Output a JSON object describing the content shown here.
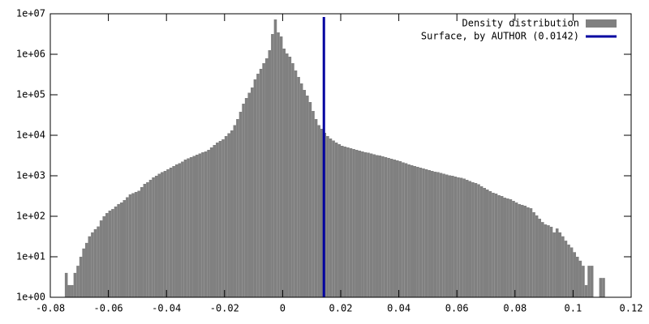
{
  "chart_data": {
    "type": "histogram",
    "log_y": true,
    "series": [
      {
        "name": "Density distribution",
        "color": "#808080",
        "values": [
          4,
          2,
          2,
          4,
          6,
          10,
          16,
          22,
          32,
          40,
          48,
          56,
          79,
          100,
          120,
          138,
          151,
          174,
          200,
          219,
          251,
          295,
          347,
          372,
          398,
          427,
          525,
          631,
          692,
          794,
          912,
          1000,
          1122,
          1230,
          1318,
          1445,
          1585,
          1738,
          1905,
          2042,
          2239,
          2512,
          2692,
          2884,
          3090,
          3311,
          3548,
          3802,
          3981,
          4365,
          5012,
          5754,
          6607,
          7244,
          7943,
          9550,
          11220,
          13183,
          17783,
          25119,
          38019,
          60256,
          83176,
          112202,
          151356,
          239883,
          331131,
          436516,
          602560,
          794328,
          1258925,
          3162278,
          7244360,
          3467369,
          2754229,
          1380384,
          1047129,
          870964,
          602560,
          398107,
          275423,
          190546,
          131826,
          95499,
          66069,
          39811,
          25119,
          17783,
          14454,
          11482,
          9550,
          8318,
          7413,
          6607,
          6026,
          5495,
          5248,
          5012,
          4786,
          4571,
          4365,
          4169,
          3981,
          3802,
          3715,
          3548,
          3388,
          3236,
          3162,
          3020,
          2884,
          2754,
          2630,
          2512,
          2399,
          2291,
          2138,
          2042,
          1905,
          1820,
          1738,
          1660,
          1585,
          1514,
          1445,
          1380,
          1318,
          1259,
          1230,
          1175,
          1122,
          1072,
          1023,
          1000,
          955,
          912,
          891,
          851,
          794,
          741,
          692,
          661,
          617,
          550,
          501,
          457,
          417,
          380,
          363,
          331,
          316,
          288,
          275,
          263,
          240,
          219,
          200,
          191,
          182,
          166,
          158,
          126,
          105,
          87,
          72,
          63,
          60,
          55,
          40,
          50,
          40,
          32,
          25,
          20,
          17,
          13,
          10,
          8,
          6,
          2,
          6,
          6,
          1,
          1,
          3,
          3
        ]
      }
    ],
    "bins": [
      -0.075,
      -0.074,
      -0.073,
      -0.072,
      -0.071,
      -0.07,
      -0.069,
      -0.068,
      -0.067,
      -0.066,
      -0.065,
      -0.064,
      -0.063,
      -0.062,
      -0.061,
      -0.06,
      -0.059,
      -0.058,
      -0.057,
      -0.056,
      -0.055,
      -0.054,
      -0.053,
      -0.052,
      -0.051,
      -0.05,
      -0.049,
      -0.048,
      -0.047,
      -0.046,
      -0.045,
      -0.044,
      -0.043,
      -0.042,
      -0.041,
      -0.04,
      -0.039,
      -0.038,
      -0.037,
      -0.036,
      -0.035,
      -0.034,
      -0.033,
      -0.032,
      -0.031,
      -0.03,
      -0.029,
      -0.028,
      -0.027,
      -0.026,
      -0.025,
      -0.024,
      -0.023,
      -0.022,
      -0.021,
      -0.02,
      -0.019,
      -0.018,
      -0.017,
      -0.016,
      -0.015,
      -0.014,
      -0.013,
      -0.012,
      -0.011,
      -0.01,
      -0.009,
      -0.008,
      -0.007,
      -0.006,
      -0.005,
      -0.004,
      -0.003,
      -0.002,
      -0.001,
      0,
      0.001,
      0.002,
      0.003,
      0.004,
      0.005,
      0.006,
      0.007,
      0.008,
      0.009,
      0.01,
      0.011,
      0.012,
      0.013,
      0.014,
      0.015,
      0.016,
      0.017,
      0.018,
      0.019,
      0.02,
      0.021,
      0.022,
      0.023,
      0.024,
      0.025,
      0.026,
      0.027,
      0.028,
      0.029,
      0.03,
      0.031,
      0.032,
      0.033,
      0.034,
      0.035,
      0.036,
      0.037,
      0.038,
      0.039,
      0.04,
      0.041,
      0.042,
      0.043,
      0.044,
      0.045,
      0.046,
      0.047,
      0.048,
      0.049,
      0.05,
      0.051,
      0.052,
      0.053,
      0.054,
      0.055,
      0.056,
      0.057,
      0.058,
      0.059,
      0.06,
      0.061,
      0.062,
      0.063,
      0.064,
      0.065,
      0.066,
      0.067,
      0.068,
      0.069,
      0.07,
      0.071,
      0.072,
      0.073,
      0.074,
      0.075,
      0.076,
      0.077,
      0.078,
      0.079,
      0.08,
      0.081,
      0.082,
      0.083,
      0.084,
      0.085,
      0.086,
      0.087,
      0.088,
      0.089,
      0.09,
      0.091,
      0.092,
      0.093,
      0.094,
      0.095,
      0.096,
      0.097,
      0.098,
      0.099,
      0.1,
      0.101,
      0.102,
      0.103,
      0.104,
      0.105,
      0.106,
      0.107,
      0.108,
      0.109,
      0.11,
      0.111
    ],
    "vline": {
      "name": "Surface, by AUTHOR (0.0142)",
      "x": 0.0142,
      "color": "#0000a0"
    },
    "xlim": [
      -0.08,
      0.12
    ],
    "xticks": [
      -0.08,
      -0.06,
      -0.04,
      -0.02,
      0,
      0.02,
      0.04,
      0.06,
      0.08,
      0.1,
      0.12
    ],
    "ylim": [
      1,
      10000000
    ],
    "yticks": [
      {
        "value": 1,
        "label": "1e+00"
      },
      {
        "value": 10,
        "label": "1e+01"
      },
      {
        "value": 100,
        "label": "1e+02"
      },
      {
        "value": 1000,
        "label": "1e+03"
      },
      {
        "value": 10000,
        "label": "1e+04"
      },
      {
        "value": 100000,
        "label": "1e+05"
      },
      {
        "value": 1000000,
        "label": "1e+06"
      },
      {
        "value": 10000000,
        "label": "1e+07"
      }
    ],
    "legend": "top-right"
  }
}
